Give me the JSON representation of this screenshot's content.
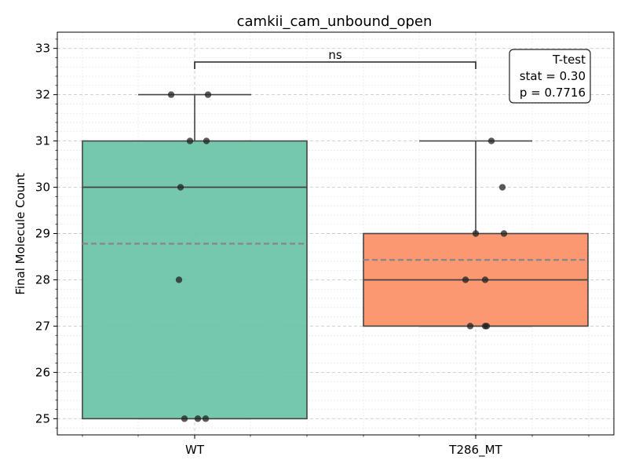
{
  "chart_data": {
    "type": "box",
    "title": "camkii_cam_unbound_open",
    "xlabel": "",
    "ylabel": "Final Molecule Count",
    "ylim": [
      24.65,
      33.35
    ],
    "yticks": [
      25,
      26,
      27,
      28,
      29,
      30,
      31,
      32,
      33
    ],
    "grid": true,
    "categories": [
      "WT",
      "T286_MT"
    ],
    "colors": {
      "WT": "#66c2a5",
      "T286_MT": "#fc8d62",
      "median": "#444444",
      "mean": "#888888",
      "points": "#222222"
    },
    "series": [
      {
        "category": "WT",
        "q1": 25,
        "median": 30,
        "q3": 31,
        "whisker_low": 25,
        "whisker_high": 32,
        "mean": 28.78,
        "points": [
          32,
          32,
          31,
          31,
          30,
          28,
          25,
          25,
          25
        ]
      },
      {
        "category": "T286_MT",
        "q1": 27,
        "median": 28,
        "q3": 29,
        "whisker_low": 27,
        "whisker_high": 31,
        "mean": 28.43,
        "points": [
          31,
          30,
          29,
          29,
          28,
          28,
          27,
          27,
          27
        ]
      }
    ],
    "significance": {
      "label": "ns",
      "between": [
        "WT",
        "T286_MT"
      ]
    },
    "stat_box": {
      "line1": "T-test",
      "line2": "stat = 0.30",
      "line3": "p = 0.7716"
    }
  }
}
